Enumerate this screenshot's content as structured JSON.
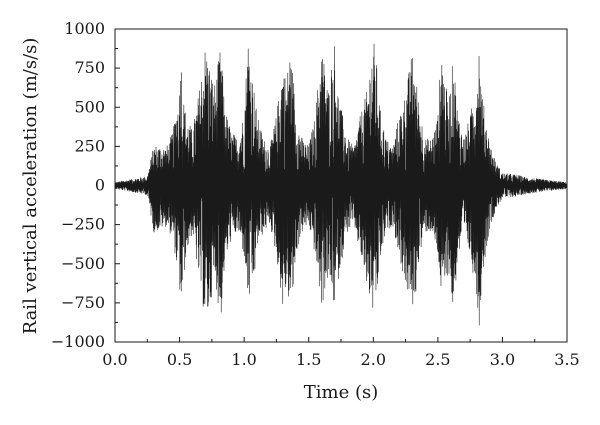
{
  "chart_data": {
    "type": "line",
    "title": "",
    "xlabel": "Time (s)",
    "ylabel": "Rail vertical acceleration (m/s/s)",
    "xlim": [
      0.0,
      3.5
    ],
    "ylim": [
      -1000,
      1000
    ],
    "x_ticks": [
      "0.0",
      "0.5",
      "1.0",
      "1.5",
      "2.0",
      "2.5",
      "3.0",
      "3.5"
    ],
    "y_ticks": [
      "1000",
      "750",
      "500",
      "250",
      "0",
      "−250",
      "−500",
      "−750",
      "−1000"
    ],
    "grid": false,
    "legend": "none",
    "line_color": "#1a1a1a",
    "series": [
      {
        "x": [
          0.0,
          0.25,
          0.3,
          0.4,
          0.45,
          0.5,
          0.51,
          0.52,
          0.55,
          0.6,
          0.65,
          0.7,
          0.72,
          0.75,
          0.78,
          0.8,
          0.82,
          0.85,
          0.9,
          0.95,
          1.0,
          1.03,
          1.05,
          1.08,
          1.1,
          1.15,
          1.2,
          1.25,
          1.3,
          1.33,
          1.35,
          1.38,
          1.4,
          1.45,
          1.5,
          1.55,
          1.6,
          1.63,
          1.65,
          1.68,
          1.7,
          1.72,
          1.75,
          1.8,
          1.85,
          1.9,
          1.95,
          2.0,
          2.03,
          2.05,
          2.1,
          2.15,
          2.2,
          2.25,
          2.3,
          2.33,
          2.35,
          2.4,
          2.45,
          2.5,
          2.53,
          2.55,
          2.58,
          2.6,
          2.62,
          2.65,
          2.7,
          2.75,
          2.8,
          2.82,
          2.84,
          2.9,
          2.95,
          3.0,
          3.1,
          3.2,
          3.3,
          3.4,
          3.5
        ],
        "y": [
          20,
          60,
          260,
          250,
          350,
          640,
          940,
          620,
          450,
          350,
          600,
          910,
          830,
          700,
          650,
          800,
          900,
          500,
          350,
          300,
          480,
          970,
          800,
          600,
          450,
          300,
          250,
          450,
          800,
          650,
          900,
          700,
          450,
          300,
          250,
          450,
          900,
          750,
          600,
          800,
          930,
          650,
          500,
          300,
          250,
          450,
          600,
          950,
          750,
          500,
          300,
          250,
          450,
          600,
          850,
          700,
          550,
          300,
          300,
          450,
          930,
          700,
          550,
          650,
          850,
          500,
          300,
          450,
          700,
          950,
          600,
          280,
          150,
          80,
          70,
          50,
          40,
          30,
          20
        ],
        "y_min": [
          -20,
          -60,
          -300,
          -260,
          -350,
          -650,
          -870,
          -700,
          -450,
          -300,
          -600,
          -880,
          -850,
          -700,
          -600,
          -780,
          -860,
          -500,
          -350,
          -300,
          -450,
          -780,
          -700,
          -600,
          -400,
          -300,
          -250,
          -450,
          -800,
          -650,
          -780,
          -700,
          -450,
          -300,
          -250,
          -450,
          -800,
          -650,
          -600,
          -700,
          -790,
          -650,
          -500,
          -300,
          -250,
          -450,
          -650,
          -830,
          -750,
          -500,
          -300,
          -250,
          -450,
          -650,
          -800,
          -700,
          -500,
          -300,
          -300,
          -450,
          -750,
          -700,
          -550,
          -650,
          -850,
          -500,
          -300,
          -450,
          -700,
          -930,
          -600,
          -280,
          -150,
          -80,
          -70,
          -50,
          -40,
          -30,
          -20
        ]
      }
    ]
  }
}
